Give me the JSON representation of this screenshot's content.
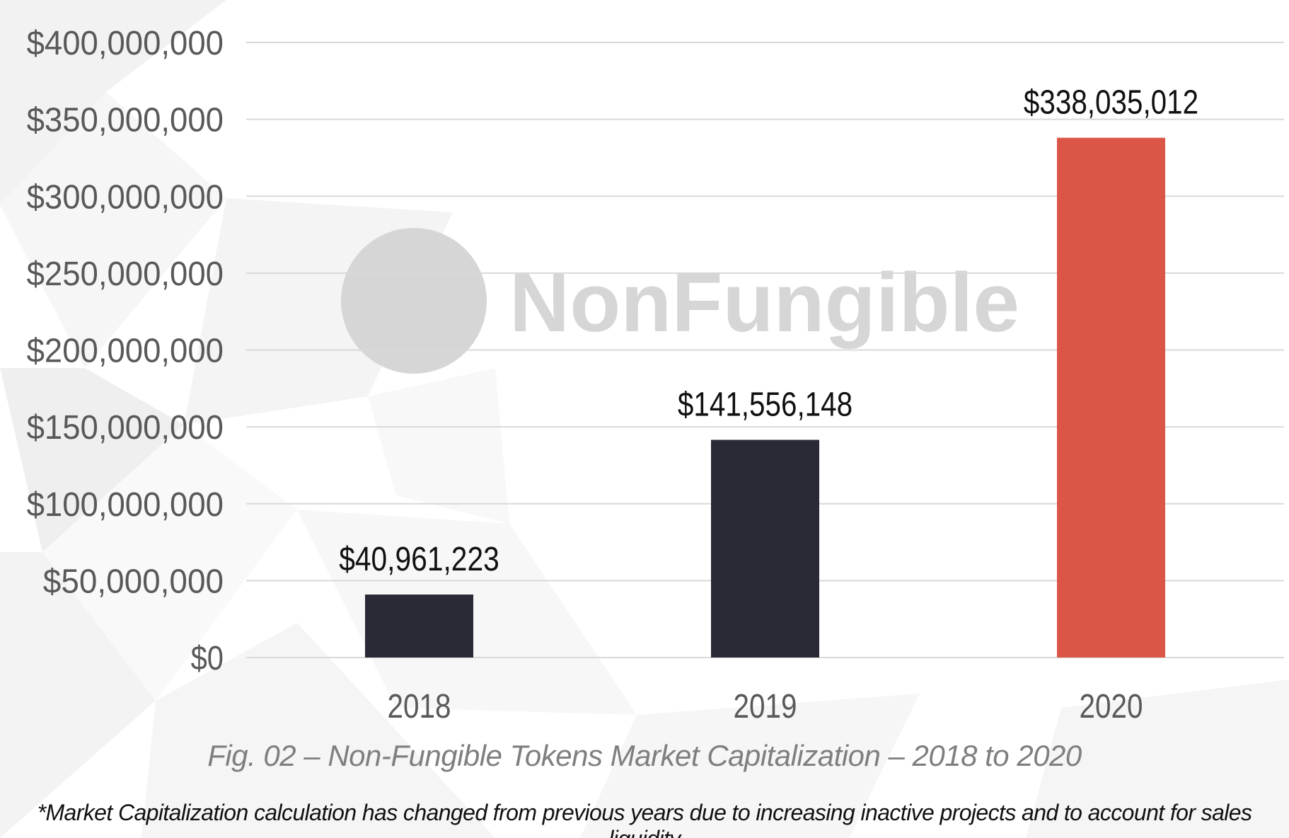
{
  "chart_data": {
    "type": "bar",
    "categories": [
      "2018",
      "2019",
      "2020"
    ],
    "values": [
      40961223,
      141556148,
      338035012
    ],
    "data_labels": [
      "$40,961,223",
      "$141,556,148",
      "$338,035,012"
    ],
    "bar_colors": [
      "#2a2a36",
      "#2a2a36",
      "#db5647"
    ],
    "ylim": [
      0,
      400000000
    ],
    "yticks": [
      0,
      50000000,
      100000000,
      150000000,
      200000000,
      250000000,
      300000000,
      350000000,
      400000000
    ],
    "ytick_labels": [
      "$0",
      "$50,000,000",
      "$100,000,000",
      "$150,000,000",
      "$200,000,000",
      "$250,000,000",
      "$300,000,000",
      "$350,000,000",
      "$400,000,000"
    ],
    "grid": true,
    "xlabel": "",
    "ylabel": ""
  },
  "caption": "Fig. 02 – Non-Fungible Tokens Market Capitalization – 2018 to 2020",
  "footnote": "*Market Capitalization calculation has changed from previous years due to increasing inactive projects and to account for sales liquidity",
  "watermark": {
    "text": "NonFungible",
    "icon": "nonfungible-logo-icon"
  },
  "colors": {
    "grid": "#d9d9d9",
    "tick_text": "#595959",
    "caption": "#7f7f7f",
    "watermark": "#d6d6d6"
  }
}
